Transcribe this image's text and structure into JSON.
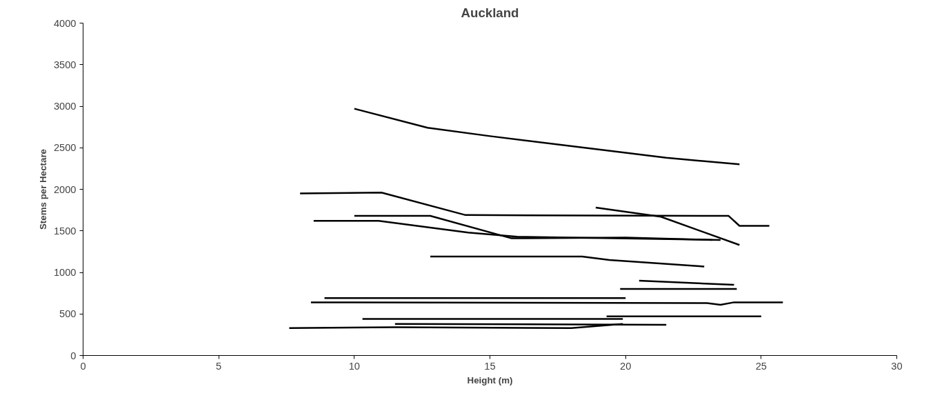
{
  "chart_data": {
    "type": "line",
    "title": "Auckland",
    "xlabel": "Height (m)",
    "ylabel": "Stems per Hectare",
    "xlim": [
      0,
      30
    ],
    "ylim": [
      0,
      4000
    ],
    "xticks": [
      0,
      5,
      10,
      15,
      20,
      25,
      30
    ],
    "yticks": [
      0,
      500,
      1000,
      1500,
      2000,
      2500,
      3000,
      3500,
      4000
    ],
    "grid": false,
    "series": [
      {
        "color": "#000000",
        "x": [
          10,
          12.7,
          15,
          20,
          21.5,
          24.2
        ],
        "values": [
          2970,
          2740,
          2640,
          2440,
          2380,
          2300
        ]
      },
      {
        "color": "#000000",
        "x": [
          8,
          11,
          14.1,
          23.8,
          24.2,
          25.3
        ],
        "values": [
          1950,
          1960,
          1690,
          1680,
          1560,
          1560
        ]
      },
      {
        "color": "#000000",
        "x": [
          8.5,
          10.9,
          14.2,
          16,
          23.5
        ],
        "values": [
          1620,
          1620,
          1480,
          1430,
          1390
        ]
      },
      {
        "color": "#000000",
        "x": [
          10,
          12.8,
          15.8,
          20,
          23.2
        ],
        "values": [
          1680,
          1680,
          1410,
          1420,
          1390
        ]
      },
      {
        "color": "#000000",
        "x": [
          18.9,
          21.3,
          24.2
        ],
        "values": [
          1780,
          1670,
          1330
        ]
      },
      {
        "color": "#000000",
        "x": [
          12.8,
          18.4,
          19.4,
          22.9
        ],
        "values": [
          1190,
          1190,
          1150,
          1070
        ]
      },
      {
        "color": "#000000",
        "x": [
          20.5,
          24
        ],
        "values": [
          900,
          850
        ]
      },
      {
        "color": "#000000",
        "x": [
          19.8,
          24.1
        ],
        "values": [
          800,
          800
        ]
      },
      {
        "color": "#000000",
        "x": [
          8.9,
          20
        ],
        "values": [
          690,
          690
        ]
      },
      {
        "color": "#000000",
        "x": [
          8.4,
          23,
          23.5,
          24,
          25.8
        ],
        "values": [
          640,
          630,
          610,
          640,
          640
        ]
      },
      {
        "color": "#000000",
        "x": [
          19.3,
          25
        ],
        "values": [
          470,
          470
        ]
      },
      {
        "color": "#000000",
        "x": [
          10.3,
          19.9
        ],
        "values": [
          440,
          440
        ]
      },
      {
        "color": "#000000",
        "x": [
          11.5,
          21.5
        ],
        "values": [
          380,
          370
        ]
      },
      {
        "color": "#000000",
        "x": [
          7.6,
          11.5,
          18,
          19.9
        ],
        "values": [
          330,
          340,
          330,
          380
        ]
      }
    ]
  }
}
